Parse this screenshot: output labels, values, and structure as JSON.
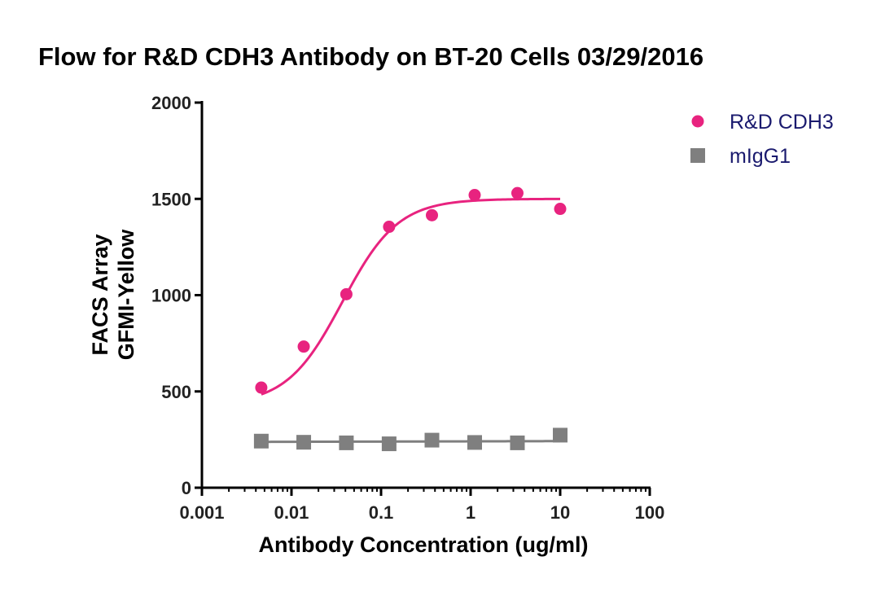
{
  "chart_data": {
    "type": "scatter",
    "title": "Flow for R&D CDH3 Antibody on BT-20 Cells  03/29/2016",
    "xlabel": "Antibody Concentration (ug/ml)",
    "ylabel_lines": [
      "FACS Array",
      "GFMI-Yellow"
    ],
    "xscale": "log",
    "xlim": [
      0.001,
      100
    ],
    "ylim": [
      0,
      2000
    ],
    "x_ticks": [
      0.001,
      0.01,
      0.1,
      1,
      10,
      100
    ],
    "x_tick_labels": [
      "0.001",
      "0.01",
      "0.1",
      "1",
      "10",
      "100"
    ],
    "y_ticks": [
      0,
      500,
      1000,
      1500,
      2000
    ],
    "y_tick_labels": [
      "0",
      "500",
      "1000",
      "1500",
      "2000"
    ],
    "grid": false,
    "legend_position": "top-right",
    "legend_text_color": "#1a1a6e",
    "series": [
      {
        "name": "R&D CDH3",
        "marker": "circle",
        "color": "#e8237f",
        "x": [
          0.0046,
          0.0137,
          0.041,
          0.123,
          0.37,
          1.11,
          3.33,
          10
        ],
        "y": [
          520,
          733,
          1005,
          1355,
          1415,
          1520,
          1530,
          1448
        ],
        "fit": {
          "model": "4PL",
          "bottom": 430,
          "top": 1500,
          "ec50": 0.037,
          "hill": 1.4,
          "x_range": [
            0.0046,
            10
          ]
        }
      },
      {
        "name": "mIgG1",
        "marker": "square",
        "color": "#7f7f7f",
        "x": [
          0.0046,
          0.0137,
          0.041,
          0.123,
          0.37,
          1.11,
          3.33,
          10
        ],
        "y": [
          242,
          236,
          233,
          228,
          247,
          235,
          233,
          273
        ],
        "fit": {
          "model": "linear",
          "start": 238,
          "end": 242,
          "x_range": [
            0.0046,
            10
          ]
        }
      }
    ]
  }
}
